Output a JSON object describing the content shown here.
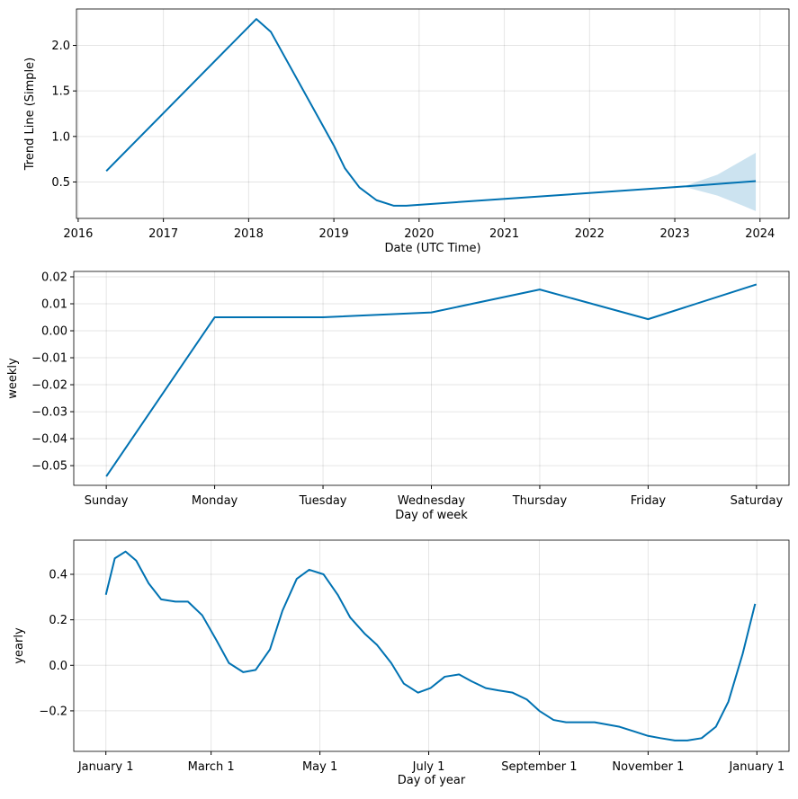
{
  "chart_data": [
    {
      "type": "line",
      "xlabel": "Date (UTC Time)",
      "ylabel": "Trend Line (Simple)",
      "color": "#0072b2",
      "grid": true,
      "x": [
        2016.33,
        2018.09,
        2018.26,
        2019.0,
        2019.13,
        2019.3,
        2019.5,
        2019.7,
        2019.85,
        2023.1,
        2023.95
      ],
      "values": [
        0.62,
        2.29,
        2.15,
        0.9,
        0.65,
        0.44,
        0.3,
        0.24,
        0.24,
        0.45,
        0.51
      ],
      "band": {
        "x": [
          2023.1,
          2023.5,
          2023.8,
          2023.95
        ],
        "lower": [
          0.45,
          0.35,
          0.24,
          0.18
        ],
        "upper": [
          0.45,
          0.58,
          0.74,
          0.82
        ]
      },
      "xlim": [
        2015.98,
        2024.34
      ],
      "xticks": [
        2016,
        2017,
        2018,
        2019,
        2020,
        2021,
        2022,
        2023,
        2024
      ],
      "ylim": [
        0.1,
        2.4
      ],
      "yticks": [
        0.5,
        {
          "value": 1.0,
          "label": "1.0"
        },
        1.5,
        {
          "value": 2.0,
          "label": "2.0"
        }
      ]
    },
    {
      "type": "line",
      "xlabel": "Day of week",
      "ylabel": "weekly",
      "color": "#0072b2",
      "grid": true,
      "categories": [
        "Sunday",
        "Monday",
        "Tuesday",
        "Wednesday",
        "Thursday",
        "Friday",
        "Saturday"
      ],
      "values": [
        -0.054,
        0.005,
        0.005,
        0.0068,
        0.0153,
        0.0043,
        0.0172
      ],
      "ylim": [
        -0.0573,
        0.022
      ],
      "yticks": [
        {
          "value": -0.05,
          "label": "−0.05"
        },
        {
          "value": -0.04,
          "label": "−0.04"
        },
        {
          "value": -0.03,
          "label": "−0.03"
        },
        {
          "value": -0.02,
          "label": "−0.02"
        },
        {
          "value": -0.01,
          "label": "−0.01"
        },
        {
          "value": 0,
          "label": "0.00"
        },
        0.01,
        0.02
      ]
    },
    {
      "type": "line",
      "xlabel": "Day of year",
      "ylabel": "yearly",
      "color": "#0072b2",
      "grid": true,
      "x": [
        0,
        5,
        11,
        17,
        24,
        31,
        39,
        46,
        54,
        62,
        69,
        77,
        84,
        92,
        99,
        107,
        114,
        122,
        130,
        137,
        145,
        152,
        160,
        167,
        175,
        182,
        190,
        198,
        205,
        213,
        220,
        228,
        236,
        243,
        251,
        258,
        266,
        274,
        281,
        288,
        296,
        304,
        311,
        319,
        326,
        334,
        342,
        349,
        357,
        364
      ],
      "values": [
        0.31,
        0.47,
        0.5,
        0.46,
        0.36,
        0.29,
        0.28,
        0.28,
        0.22,
        0.11,
        0.01,
        -0.03,
        -0.02,
        0.07,
        0.24,
        0.38,
        0.42,
        0.4,
        0.31,
        0.21,
        0.14,
        0.09,
        0.01,
        -0.08,
        -0.12,
        -0.1,
        -0.05,
        -0.04,
        -0.07,
        -0.1,
        -0.11,
        -0.12,
        -0.15,
        -0.2,
        -0.24,
        -0.25,
        -0.25,
        -0.25,
        -0.26,
        -0.27,
        -0.29,
        -0.31,
        -0.32,
        -0.33,
        -0.33,
        -0.32,
        -0.27,
        -0.16,
        0.05,
        0.27
      ],
      "xlim": [
        -18,
        383
      ],
      "xticks": [
        {
          "value": 0,
          "label": "January 1"
        },
        {
          "value": 59,
          "label": "March 1"
        },
        {
          "value": 120,
          "label": "May 1"
        },
        {
          "value": 181,
          "label": "July 1"
        },
        {
          "value": 243,
          "label": "September 1"
        },
        {
          "value": 304,
          "label": "November 1"
        },
        {
          "value": 365,
          "label": "January 1"
        }
      ],
      "ylim": [
        -0.378,
        0.55
      ],
      "yticks": [
        {
          "value": -0.2,
          "label": "−0.2"
        },
        {
          "value": 0,
          "label": "0.0"
        },
        0.2,
        0.4
      ]
    }
  ]
}
